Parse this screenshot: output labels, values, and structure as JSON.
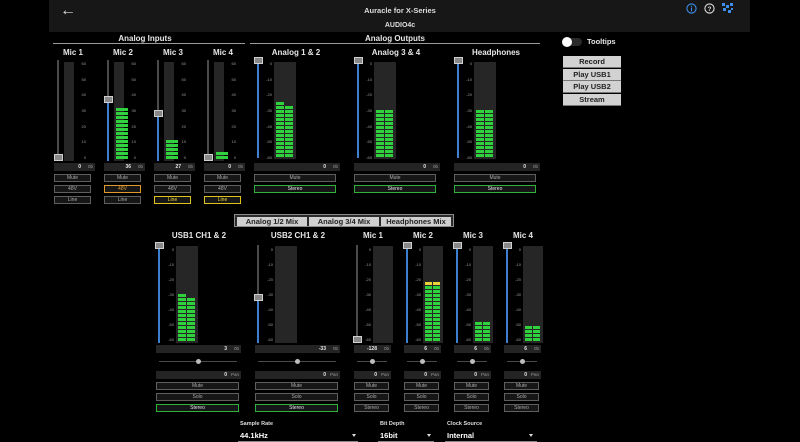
{
  "header": {
    "title": "Auracle for X-Series",
    "device": "AUDIO4c",
    "back_icon": "back-arrow-icon",
    "info_icon": "info-icon",
    "help_icon": "help-icon",
    "logo_icon": "logo-icon",
    "accent": "#3d7fd6"
  },
  "sections": {
    "analog_inputs": "Analog Inputs",
    "analog_outputs": "Analog Outputs"
  },
  "inputs": [
    {
      "name": "Mic 1",
      "value": "0",
      "unit": "0b",
      "fader": 0.0,
      "meter": [
        0,
        0
      ],
      "mute": "Mute",
      "phantom": "48V",
      "phantom_on": false,
      "mode": "Line",
      "mode_on": false
    },
    {
      "name": "Mic 2",
      "value": "36",
      "unit": "0b",
      "fader": 0.6,
      "meter": [
        0,
        13
      ],
      "mute": "Mute",
      "phantom": "48V",
      "phantom_on": true,
      "mode": "Line",
      "mode_on": false
    },
    {
      "name": "Mic 3",
      "value": "27",
      "unit": "0b",
      "fader": 0.45,
      "meter": [
        0,
        5
      ],
      "mute": "Mute",
      "phantom": "48V",
      "phantom_on": false,
      "mode": "Line",
      "mode_on": true
    },
    {
      "name": "Mic 4",
      "value": "0",
      "unit": "0b",
      "fader": 0.0,
      "meter": [
        0,
        2
      ],
      "mute": "Mute",
      "phantom": "48V",
      "phantom_on": false,
      "mode": "Line",
      "mode_on": true
    }
  ],
  "outputs": [
    {
      "name": "Analog 1 & 2",
      "value": "0",
      "unit": "0b",
      "fader": 1.0,
      "meter": [
        14,
        13
      ],
      "mute": "Mute",
      "stereo": "Stereo"
    },
    {
      "name": "Analog 3 & 4",
      "value": "0",
      "unit": "0b",
      "fader": 1.0,
      "meter": [
        12,
        12
      ],
      "mute": "Mute",
      "stereo": "Stereo"
    },
    {
      "name": "Headphones",
      "value": "0",
      "unit": "0b",
      "fader": 1.0,
      "meter": [
        12,
        12
      ],
      "mute": "Mute",
      "stereo": "Stereo"
    }
  ],
  "scale_labels": [
    "0",
    "-10",
    "-20",
    "-30",
    "-40",
    "-50",
    "-60"
  ],
  "scale_labels_in": [
    "60",
    "50",
    "40",
    "30",
    "20",
    "10",
    "0"
  ],
  "tooltips": {
    "label": "Tooltips",
    "on": false
  },
  "routing": {
    "buttons": [
      "Record",
      "Play USB1",
      "Play USB2",
      "Stream"
    ],
    "active": 0
  },
  "mix_tabs": {
    "tabs": [
      "Analog 1/2 Mix",
      "Analog 3/4 Mix",
      "Headphones Mix"
    ],
    "active": 0
  },
  "mixer": [
    {
      "name": "USB1 CH1 & 2",
      "value": "3",
      "unit": "0b",
      "fader": 1.0,
      "meter": [
        12,
        11
      ],
      "pan": "0",
      "pan_unit": "Pan",
      "mute": "Mute",
      "solo": "Solo",
      "stereo": "Stereo",
      "stereo_on": true
    },
    {
      "name": "USB2 CH1 & 2",
      "value": "-33",
      "unit": "0b",
      "fader": 0.45,
      "meter": [
        0,
        0
      ],
      "pan": "0",
      "pan_unit": "Pan",
      "mute": "Mute",
      "solo": "Solo",
      "stereo": "Stereo",
      "stereo_on": true
    },
    {
      "name": "Mic 1",
      "value": "-128",
      "unit": "0b",
      "fader": 0.0,
      "meter": [
        0,
        0
      ],
      "pan": "0",
      "pan_unit": "Pan",
      "mute": "Mute",
      "solo": "Solo",
      "stereo": "Stereo",
      "stereo_on": false
    },
    {
      "name": "Mic 2",
      "value": "6",
      "unit": "0b",
      "fader": 1.0,
      "meter": [
        15,
        15
      ],
      "pan": "0",
      "pan_unit": "Pan",
      "mute": "Mute",
      "solo": "Solo",
      "stereo": "Stereo",
      "stereo_on": false
    },
    {
      "name": "Mic 3",
      "value": "6",
      "unit": "0b",
      "fader": 1.0,
      "meter": [
        5,
        5
      ],
      "pan": "0",
      "pan_unit": "Pan",
      "mute": "Mute",
      "solo": "Solo",
      "stereo": "Stereo",
      "stereo_on": false
    },
    {
      "name": "Mic 4",
      "value": "6",
      "unit": "0b",
      "fader": 1.0,
      "meter": [
        4,
        4
      ],
      "pan": "0",
      "pan_unit": "Pan",
      "mute": "Mute",
      "solo": "Solo",
      "stereo": "Stereo",
      "stereo_on": false
    }
  ],
  "footer": {
    "sample_rate": {
      "label": "Sample Rate",
      "value": "44.1kHz"
    },
    "bit_depth": {
      "label": "Bit Depth",
      "value": "16bit"
    },
    "clock_source": {
      "label": "Clock Source",
      "value": "Internal"
    }
  },
  "colors": {
    "green": "#2fd13c",
    "yellow": "#e8d23a",
    "orange": "#f07a2a",
    "fader_fill": "#3f7fd0"
  }
}
